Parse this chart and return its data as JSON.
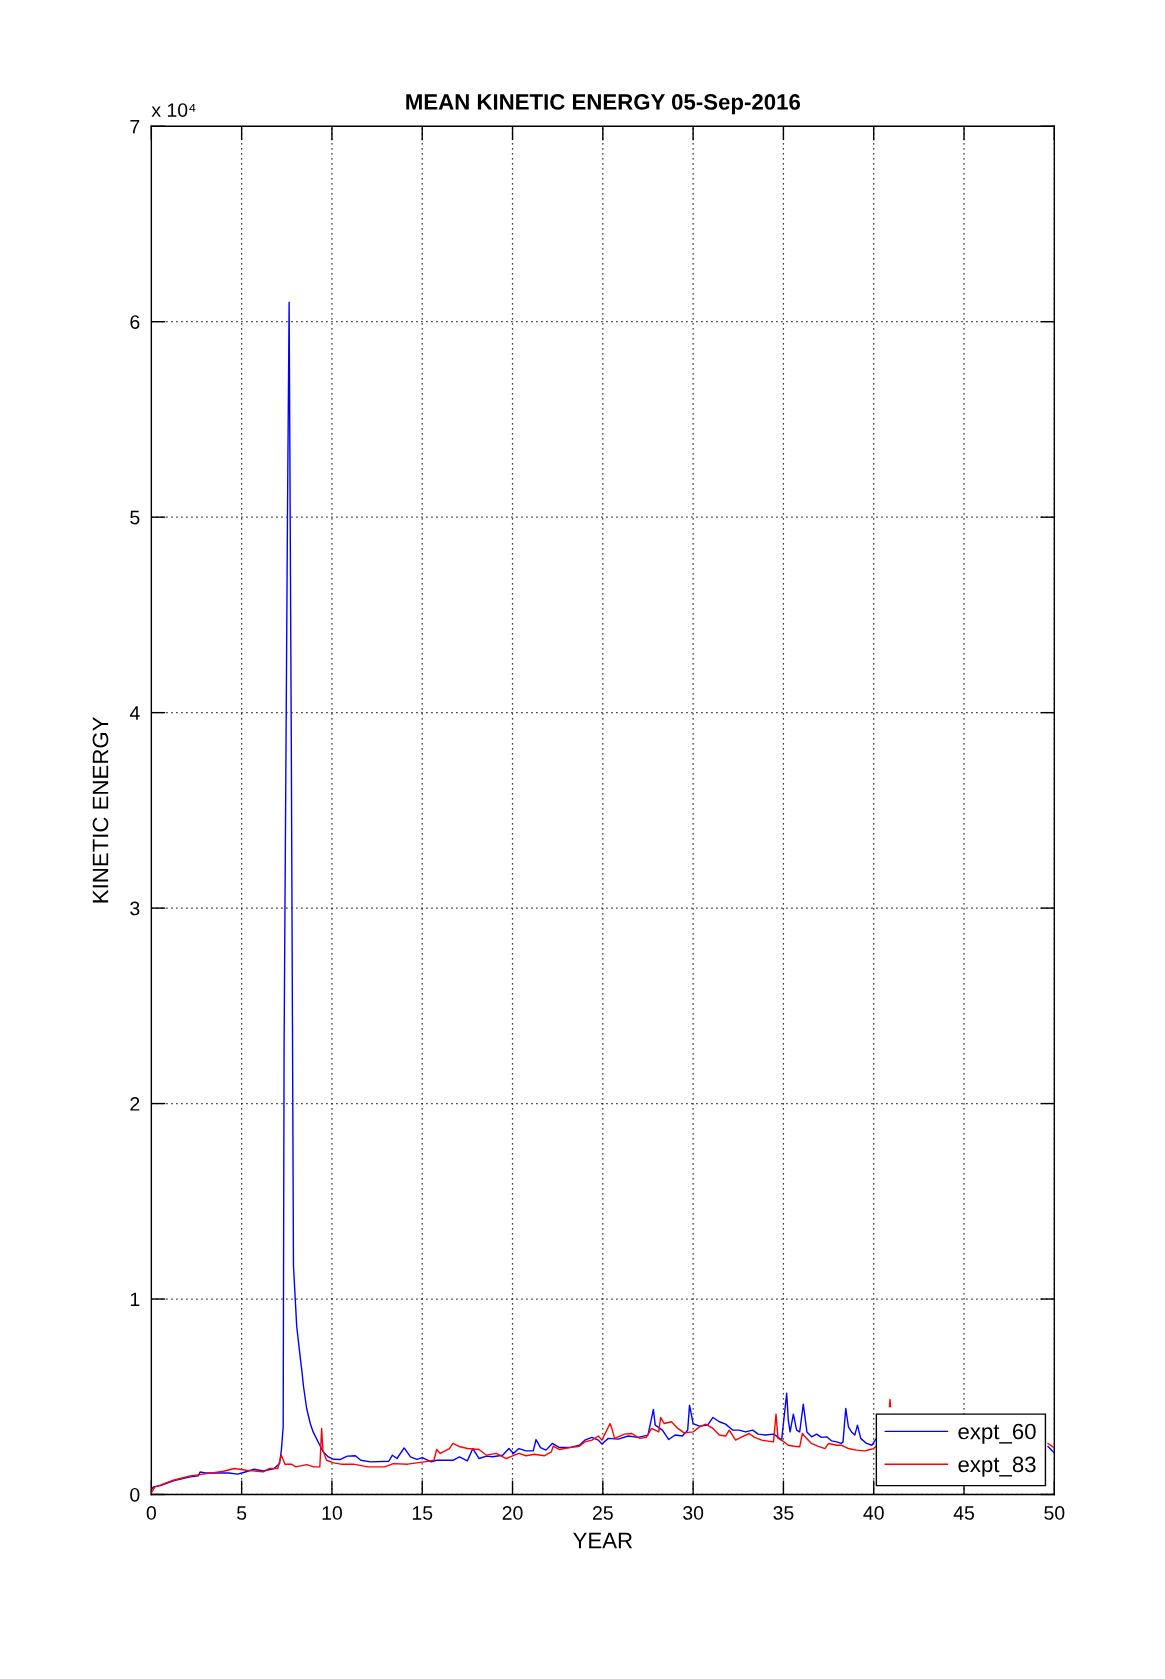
{
  "chart_data": {
    "type": "line",
    "title": "MEAN KINETIC ENERGY 05-Sep-2016",
    "xlabel": "YEAR",
    "ylabel": "KINETIC ENERGY",
    "annotations": [
      "x 10⁴"
    ],
    "xlim": [
      0,
      50
    ],
    "ylim": [
      0,
      7
    ],
    "xticks": [
      0,
      5,
      10,
      15,
      20,
      25,
      30,
      35,
      40,
      45,
      50
    ],
    "yticks": [
      0,
      1,
      2,
      3,
      4,
      5,
      6,
      7
    ],
    "grid": true,
    "legend": "bottom right",
    "series": [
      {
        "name": "expt_60",
        "color": "#0000ff",
        "x": [
          0.05,
          0.11,
          0.5,
          1.22,
          2.15,
          2.6,
          2.7,
          3.0,
          3.48,
          4.3,
          4.78,
          5.2,
          5.7,
          6.2,
          6.8,
          7.1,
          7.2,
          7.3,
          7.35,
          7.54,
          7.63,
          7.75,
          7.87,
          8.05,
          8.26,
          8.35,
          8.43,
          8.6,
          8.8,
          8.96,
          9.33,
          9.52,
          9.8,
          10.1,
          10.48,
          10.85,
          11.3,
          11.6,
          12.15,
          13.15,
          13.35,
          13.6,
          14.0,
          14.35,
          14.7,
          15.0,
          15.5,
          15.8,
          16.7,
          17.06,
          17.5,
          17.8,
          18.15,
          18.55,
          18.9,
          19.45,
          19.8,
          20.05,
          20.35,
          20.75,
          21.15,
          21.3,
          21.55,
          21.85,
          22.2,
          22.6,
          23.15,
          23.7,
          24.0,
          24.4,
          24.75,
          24.95,
          25.3,
          25.85,
          26.4,
          26.95,
          27.5,
          27.8,
          27.9,
          28.3,
          28.65,
          29.0,
          29.4,
          29.7,
          29.8,
          30.0,
          30.35,
          30.8,
          31.1,
          31.45,
          31.8,
          32.2,
          32.55,
          32.9,
          33.3,
          33.6,
          34.0,
          34.45,
          34.6,
          34.9,
          35.18,
          35.27,
          35.37,
          35.55,
          35.73,
          35.9,
          36.1,
          36.3,
          36.56,
          36.84,
          37.1,
          37.4,
          37.67,
          37.95,
          38.2,
          38.3,
          38.45,
          38.6,
          38.77,
          38.95,
          39.1,
          39.28,
          39.6,
          39.9,
          40.1,
          40.5,
          49.65,
          49.98
        ],
        "values": [
          0.03,
          0.039,
          0.045,
          0.07,
          0.09,
          0.095,
          0.115,
          0.11,
          0.11,
          0.11,
          0.104,
          0.115,
          0.129,
          0.12,
          0.133,
          0.158,
          0.227,
          0.346,
          2.27,
          5.03,
          6.1,
          3.85,
          1.17,
          0.86,
          0.69,
          0.62,
          0.55,
          0.44,
          0.363,
          0.32,
          0.252,
          0.218,
          0.192,
          0.18,
          0.179,
          0.196,
          0.198,
          0.175,
          0.167,
          0.17,
          0.201,
          0.184,
          0.238,
          0.192,
          0.18,
          0.189,
          0.167,
          0.175,
          0.175,
          0.192,
          0.172,
          0.235,
          0.184,
          0.196,
          0.193,
          0.201,
          0.235,
          0.21,
          0.235,
          0.223,
          0.223,
          0.281,
          0.24,
          0.227,
          0.261,
          0.24,
          0.24,
          0.252,
          0.278,
          0.292,
          0.278,
          0.258,
          0.287,
          0.283,
          0.299,
          0.292,
          0.304,
          0.435,
          0.355,
          0.329,
          0.281,
          0.304,
          0.299,
          0.329,
          0.457,
          0.363,
          0.35,
          0.355,
          0.394,
          0.372,
          0.36,
          0.329,
          0.329,
          0.32,
          0.329,
          0.309,
          0.304,
          0.309,
          0.3,
          0.278,
          0.518,
          0.38,
          0.32,
          0.411,
          0.329,
          0.32,
          0.462,
          0.32,
          0.295,
          0.309,
          0.292,
          0.295,
          0.274,
          0.269,
          0.261,
          0.269,
          0.44,
          0.346,
          0.32,
          0.304,
          0.355,
          0.287,
          0.261,
          0.252,
          0.281,
          null,
          0.245,
          0.215
        ]
      },
      {
        "name": "expt_83",
        "color": "#ff0000",
        "x": [
          0.0,
          0.2,
          0.5,
          1.22,
          2.15,
          3.07,
          4.0,
          4.6,
          5.26,
          6.2,
          6.55,
          7.0,
          7.2,
          7.4,
          7.76,
          8.0,
          8.6,
          9.0,
          9.33,
          9.43,
          9.5,
          9.7,
          10.1,
          10.5,
          11.2,
          11.97,
          12.9,
          13.4,
          14.2,
          15.1,
          15.65,
          15.8,
          16.0,
          16.5,
          16.7,
          17.1,
          17.5,
          18.15,
          18.55,
          19.1,
          19.65,
          20.35,
          20.75,
          21.2,
          21.75,
          22.15,
          22.25,
          22.6,
          23.15,
          23.7,
          24.0,
          24.4,
          24.75,
          24.95,
          25.4,
          25.5,
          25.65,
          26.2,
          26.6,
          27.05,
          27.4,
          27.7,
          28.1,
          28.2,
          28.4,
          28.8,
          29.15,
          29.5,
          30.0,
          30.35,
          30.7,
          31.1,
          31.45,
          31.8,
          32.0,
          32.35,
          32.7,
          33.1,
          33.4,
          33.8,
          34.15,
          34.45,
          34.59,
          34.7,
          34.9,
          35.27,
          35.6,
          35.9,
          36.05,
          36.2,
          36.55,
          36.9,
          37.3,
          37.5,
          37.95,
          38.2,
          38.6,
          39.05,
          39.5,
          39.8,
          39.98,
          40.1,
          40.5,
          40.87,
          40.9,
          40.93,
          41.2,
          49.65,
          49.98
        ],
        "values": [
          0.008,
          0.039,
          0.048,
          0.073,
          0.095,
          0.107,
          0.119,
          0.133,
          0.124,
          0.116,
          0.133,
          0.133,
          0.201,
          0.155,
          0.155,
          0.141,
          0.153,
          0.141,
          0.141,
          0.338,
          0.227,
          0.175,
          0.162,
          0.155,
          0.155,
          0.141,
          0.141,
          0.158,
          0.155,
          0.167,
          0.175,
          0.23,
          0.21,
          0.235,
          0.261,
          0.244,
          0.235,
          0.23,
          0.201,
          0.21,
          0.184,
          0.21,
          0.198,
          0.206,
          0.198,
          0.218,
          0.247,
          0.23,
          0.24,
          0.247,
          0.269,
          0.278,
          0.299,
          0.278,
          0.363,
          0.338,
          0.287,
          0.309,
          0.312,
          0.287,
          0.292,
          0.338,
          0.32,
          0.394,
          0.363,
          0.372,
          0.338,
          0.315,
          0.32,
          0.346,
          0.36,
          0.338,
          0.304,
          0.299,
          0.329,
          0.278,
          0.295,
          0.312,
          0.292,
          0.278,
          0.273,
          0.269,
          0.411,
          0.287,
          0.278,
          0.252,
          0.247,
          0.244,
          0.312,
          0.295,
          0.261,
          0.247,
          0.235,
          0.261,
          0.252,
          0.252,
          0.235,
          0.227,
          0.223,
          0.23,
          0.235,
          0.244,
          null,
          0.45,
          0.486,
          0.45,
          null,
          0.26,
          0.24
        ]
      }
    ]
  }
}
